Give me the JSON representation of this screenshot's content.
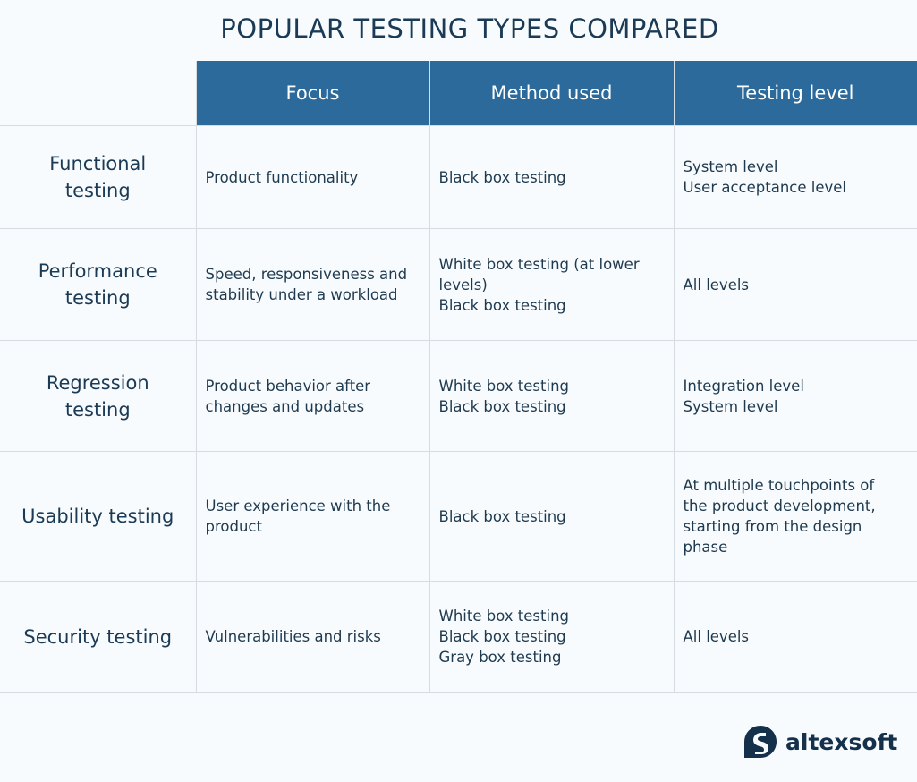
{
  "title": "POPULAR TESTING TYPES COMPARED",
  "columns": [
    "Focus",
    "Method used",
    "Testing level"
  ],
  "rows": [
    {
      "name": "Functional testing",
      "name_lines": [
        "Functional",
        "testing"
      ],
      "focus": [
        "Product functionality"
      ],
      "method": [
        "Black box testing"
      ],
      "level": [
        "System level",
        "User acceptance level"
      ]
    },
    {
      "name": "Performance testing",
      "name_lines": [
        "Performance",
        "testing"
      ],
      "focus": [
        "Speed, responsiveness and",
        "stability under a workload"
      ],
      "method": [
        "White box testing (at lower",
        "levels)",
        "Black box testing"
      ],
      "level": [
        "All levels"
      ]
    },
    {
      "name": "Regression testing",
      "name_lines": [
        "Regression",
        "testing"
      ],
      "focus": [
        "Product behavior after",
        "changes and updates"
      ],
      "method": [
        "White box testing",
        "Black box testing"
      ],
      "level": [
        "Integration level",
        "System level"
      ]
    },
    {
      "name": "Usability testing",
      "name_lines": [
        "Usability testing"
      ],
      "focus": [
        "User experience with the",
        "product"
      ],
      "method": [
        "Black box testing"
      ],
      "level": [
        "At multiple touchpoints of",
        "the product development,",
        "starting from the design",
        "phase"
      ]
    },
    {
      "name": "Security testing",
      "name_lines": [
        "Security testing"
      ],
      "focus": [
        "Vulnerabilities and risks"
      ],
      "method": [
        "White box testing",
        "Black box testing",
        "Gray box testing"
      ],
      "level": [
        "All levels"
      ]
    }
  ],
  "logo": {
    "text": "altexsoft",
    "icon": "altexsoft-logo-icon"
  },
  "colors": {
    "header_bg": "#2c6a9c",
    "text": "#1f3a4f",
    "background": "#f7fbfd",
    "grid": "#d5dde3"
  }
}
